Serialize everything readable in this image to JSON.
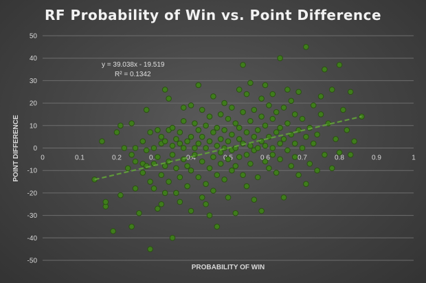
{
  "chart_data": {
    "type": "scatter",
    "title": "RF Probability  of Win vs. Point Difference",
    "xlabel": "PROBABILITY OF WIN",
    "ylabel": "POINT DIFFERENCE",
    "xlim": [
      0,
      1
    ],
    "ylim": [
      -50,
      50
    ],
    "x_ticks": [
      "0",
      "0.1",
      "0.2",
      "0.3",
      "0.4",
      "0.5",
      "0.6",
      "0.7",
      "0.8",
      "0.9",
      "1"
    ],
    "y_ticks": [
      "50",
      "40",
      "30",
      "20",
      "10",
      "0",
      "-10",
      "-20",
      "-30",
      "-40",
      "-50"
    ],
    "grid": true,
    "trendline": {
      "type": "linear",
      "slope": 39.038,
      "intercept": -19.519,
      "x_range": [
        0.14,
        0.86
      ],
      "equation_label": "y = 39.038x - 19.519",
      "r2_label": "R² = 0.1342"
    },
    "marker_color": "#3f7d1c",
    "marker_edge": "#2a5012",
    "trend_color": "#5f9a3a",
    "series": [
      {
        "points": [
          [
            0.14,
            -14
          ],
          [
            0.16,
            3
          ],
          [
            0.17,
            -26
          ],
          [
            0.17,
            -24
          ],
          [
            0.19,
            -37
          ],
          [
            0.2,
            7
          ],
          [
            0.21,
            10
          ],
          [
            0.21,
            -21
          ],
          [
            0.22,
            0
          ],
          [
            0.23,
            -9
          ],
          [
            0.24,
            -35
          ],
          [
            0.24,
            11
          ],
          [
            0.24,
            -3
          ],
          [
            0.25,
            -18
          ],
          [
            0.25,
            -6
          ],
          [
            0.25,
            0
          ],
          [
            0.26,
            -29
          ],
          [
            0.27,
            -7
          ],
          [
            0.27,
            3
          ],
          [
            0.27,
            -11
          ],
          [
            0.28,
            17
          ],
          [
            0.28,
            -1
          ],
          [
            0.28,
            -8
          ],
          [
            0.29,
            -45
          ],
          [
            0.29,
            7
          ],
          [
            0.29,
            -15
          ],
          [
            0.3,
            0
          ],
          [
            0.3,
            -7
          ],
          [
            0.3,
            -18
          ],
          [
            0.31,
            -27
          ],
          [
            0.31,
            8
          ],
          [
            0.31,
            -4
          ],
          [
            0.32,
            2
          ],
          [
            0.32,
            -12
          ],
          [
            0.32,
            -25
          ],
          [
            0.32,
            5
          ],
          [
            0.33,
            -20
          ],
          [
            0.33,
            -8
          ],
          [
            0.33,
            3
          ],
          [
            0.33,
            26
          ],
          [
            0.34,
            -6
          ],
          [
            0.34,
            8
          ],
          [
            0.34,
            22
          ],
          [
            0.34,
            -15
          ],
          [
            0.35,
            1
          ],
          [
            0.35,
            -3
          ],
          [
            0.35,
            -40
          ],
          [
            0.35,
            9
          ],
          [
            0.36,
            -9
          ],
          [
            0.36,
            -20
          ],
          [
            0.36,
            4
          ],
          [
            0.37,
            2
          ],
          [
            0.37,
            -13
          ],
          [
            0.37,
            -24
          ],
          [
            0.37,
            7
          ],
          [
            0.38,
            18
          ],
          [
            0.38,
            -5
          ],
          [
            0.38,
            0
          ],
          [
            0.38,
            12
          ],
          [
            0.39,
            -8
          ],
          [
            0.39,
            -17
          ],
          [
            0.39,
            3
          ],
          [
            0.4,
            19
          ],
          [
            0.4,
            -10
          ],
          [
            0.4,
            5
          ],
          [
            0.4,
            -28
          ],
          [
            0.41,
            0
          ],
          [
            0.41,
            11
          ],
          [
            0.41,
            -3
          ],
          [
            0.42,
            28
          ],
          [
            0.42,
            -13
          ],
          [
            0.42,
            2
          ],
          [
            0.42,
            8
          ],
          [
            0.43,
            -22
          ],
          [
            0.43,
            17
          ],
          [
            0.43,
            5
          ],
          [
            0.43,
            -6
          ],
          [
            0.44,
            -25
          ],
          [
            0.44,
            0
          ],
          [
            0.44,
            10
          ],
          [
            0.44,
            -16
          ],
          [
            0.45,
            3
          ],
          [
            0.45,
            -30
          ],
          [
            0.45,
            14
          ],
          [
            0.45,
            -9
          ],
          [
            0.46,
            -4
          ],
          [
            0.46,
            7
          ],
          [
            0.46,
            -19
          ],
          [
            0.46,
            23
          ],
          [
            0.47,
            1
          ],
          [
            0.47,
            -12
          ],
          [
            0.47,
            9
          ],
          [
            0.47,
            -35
          ],
          [
            0.48,
            4
          ],
          [
            0.48,
            -7
          ],
          [
            0.48,
            15
          ],
          [
            0.48,
            -2
          ],
          [
            0.49,
            20
          ],
          [
            0.49,
            8
          ],
          [
            0.49,
            -14
          ],
          [
            0.49,
            0
          ],
          [
            0.5,
            13
          ],
          [
            0.5,
            -5
          ],
          [
            0.5,
            3
          ],
          [
            0.5,
            -22
          ],
          [
            0.51,
            6
          ],
          [
            0.51,
            -10
          ],
          [
            0.51,
            18
          ],
          [
            0.51,
            -1
          ],
          [
            0.52,
            0
          ],
          [
            0.52,
            11
          ],
          [
            0.52,
            -8
          ],
          [
            0.52,
            -29
          ],
          [
            0.53,
            26
          ],
          [
            0.53,
            4
          ],
          [
            0.53,
            -4
          ],
          [
            0.53,
            9
          ],
          [
            0.54,
            37
          ],
          [
            0.54,
            -12
          ],
          [
            0.54,
            2
          ],
          [
            0.54,
            16
          ],
          [
            0.55,
            -17
          ],
          [
            0.55,
            7
          ],
          [
            0.55,
            24
          ],
          [
            0.55,
            -3
          ],
          [
            0.56,
            1
          ],
          [
            0.56,
            12
          ],
          [
            0.56,
            -7
          ],
          [
            0.56,
            29
          ],
          [
            0.57,
            -23
          ],
          [
            0.57,
            5
          ],
          [
            0.57,
            17
          ],
          [
            0.57,
            -1
          ],
          [
            0.58,
            0
          ],
          [
            0.58,
            -13
          ],
          [
            0.58,
            8
          ],
          [
            0.59,
            22
          ],
          [
            0.59,
            -28
          ],
          [
            0.59,
            3
          ],
          [
            0.59,
            14
          ],
          [
            0.6,
            -6
          ],
          [
            0.6,
            28
          ],
          [
            0.6,
            10
          ],
          [
            0.6,
            1
          ],
          [
            0.61,
            -9
          ],
          [
            0.61,
            19
          ],
          [
            0.61,
            5
          ],
          [
            0.62,
            0
          ],
          [
            0.62,
            13
          ],
          [
            0.62,
            -3
          ],
          [
            0.62,
            24
          ],
          [
            0.63,
            7
          ],
          [
            0.63,
            -11
          ],
          [
            0.63,
            16
          ],
          [
            0.64,
            40
          ],
          [
            0.64,
            2
          ],
          [
            0.64,
            -5
          ],
          [
            0.64,
            9
          ],
          [
            0.65,
            -22
          ],
          [
            0.65,
            18
          ],
          [
            0.65,
            4
          ],
          [
            0.66,
            26
          ],
          [
            0.66,
            -1
          ],
          [
            0.66,
            11
          ],
          [
            0.67,
            6
          ],
          [
            0.67,
            -8
          ],
          [
            0.67,
            21
          ],
          [
            0.68,
            2
          ],
          [
            0.68,
            -4
          ],
          [
            0.68,
            15
          ],
          [
            0.69,
            25
          ],
          [
            0.69,
            -12
          ],
          [
            0.69,
            8
          ],
          [
            0.7,
            0
          ],
          [
            0.7,
            13
          ],
          [
            0.71,
            -16
          ],
          [
            0.71,
            45
          ],
          [
            0.71,
            5
          ],
          [
            0.72,
            9
          ],
          [
            0.72,
            -7
          ],
          [
            0.73,
            2
          ],
          [
            0.73,
            19
          ],
          [
            0.74,
            -10
          ],
          [
            0.74,
            6
          ],
          [
            0.75,
            23
          ],
          [
            0.75,
            15
          ],
          [
            0.76,
            35
          ],
          [
            0.76,
            -3
          ],
          [
            0.77,
            11
          ],
          [
            0.78,
            -9
          ],
          [
            0.78,
            26
          ],
          [
            0.79,
            4
          ],
          [
            0.8,
            37
          ],
          [
            0.8,
            -2
          ],
          [
            0.81,
            17
          ],
          [
            0.82,
            8
          ],
          [
            0.83,
            -3
          ],
          [
            0.83,
            25
          ],
          [
            0.84,
            3
          ],
          [
            0.86,
            14
          ]
        ]
      }
    ]
  }
}
